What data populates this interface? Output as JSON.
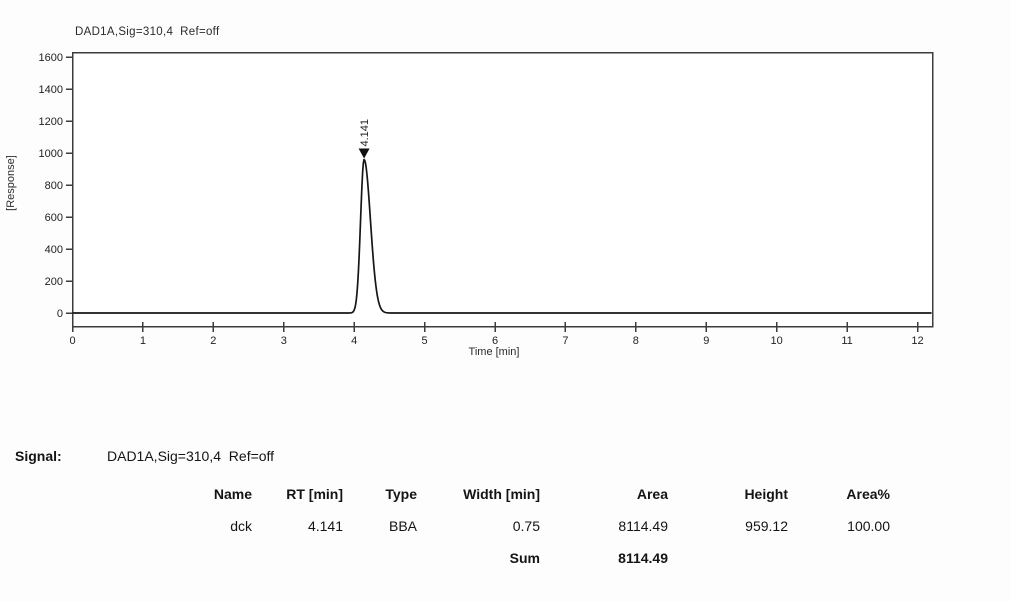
{
  "chart_data": {
    "type": "line",
    "title": "DAD1A,Sig=310,4  Ref=off",
    "xlabel": "Time [min]",
    "ylabel": "[Response]",
    "xlim": [
      0,
      12.2
    ],
    "ylim": [
      -88,
      1640
    ],
    "x_ticks": [
      0,
      1,
      2,
      3,
      4,
      5,
      6,
      7,
      8,
      9,
      10,
      11,
      12
    ],
    "y_ticks": [
      0,
      200,
      400,
      600,
      800,
      1000,
      1200,
      1400,
      1600
    ],
    "baseline_value": 0,
    "legend": "none",
    "grid": "off",
    "peaks": [
      {
        "rt": 4.141,
        "height": 959.12,
        "area": 8114.49,
        "label": "4.141",
        "sigma_left_min": 0.05,
        "sigma_right_min": 0.09
      }
    ]
  },
  "signal": {
    "label": "Signal:",
    "value": "DAD1A,Sig=310,4  Ref=off"
  },
  "peak_table": {
    "headers": [
      "Name",
      "RT [min]",
      "Type",
      "Width [min]",
      "Area",
      "Height",
      "Area%"
    ],
    "rows": [
      [
        "dck",
        "4.141",
        "BBA",
        "0.75",
        "8114.49",
        "959.12",
        "100.00"
      ]
    ],
    "sum_label": "Sum",
    "sum_area": "8114.49"
  },
  "colors": {
    "trace": "#161616",
    "axis": "#3c3c3c",
    "marker": "#111111",
    "plot_bg": "#ffffff",
    "page_bg": "#fdfdfd",
    "text": "#1f1f1f"
  }
}
